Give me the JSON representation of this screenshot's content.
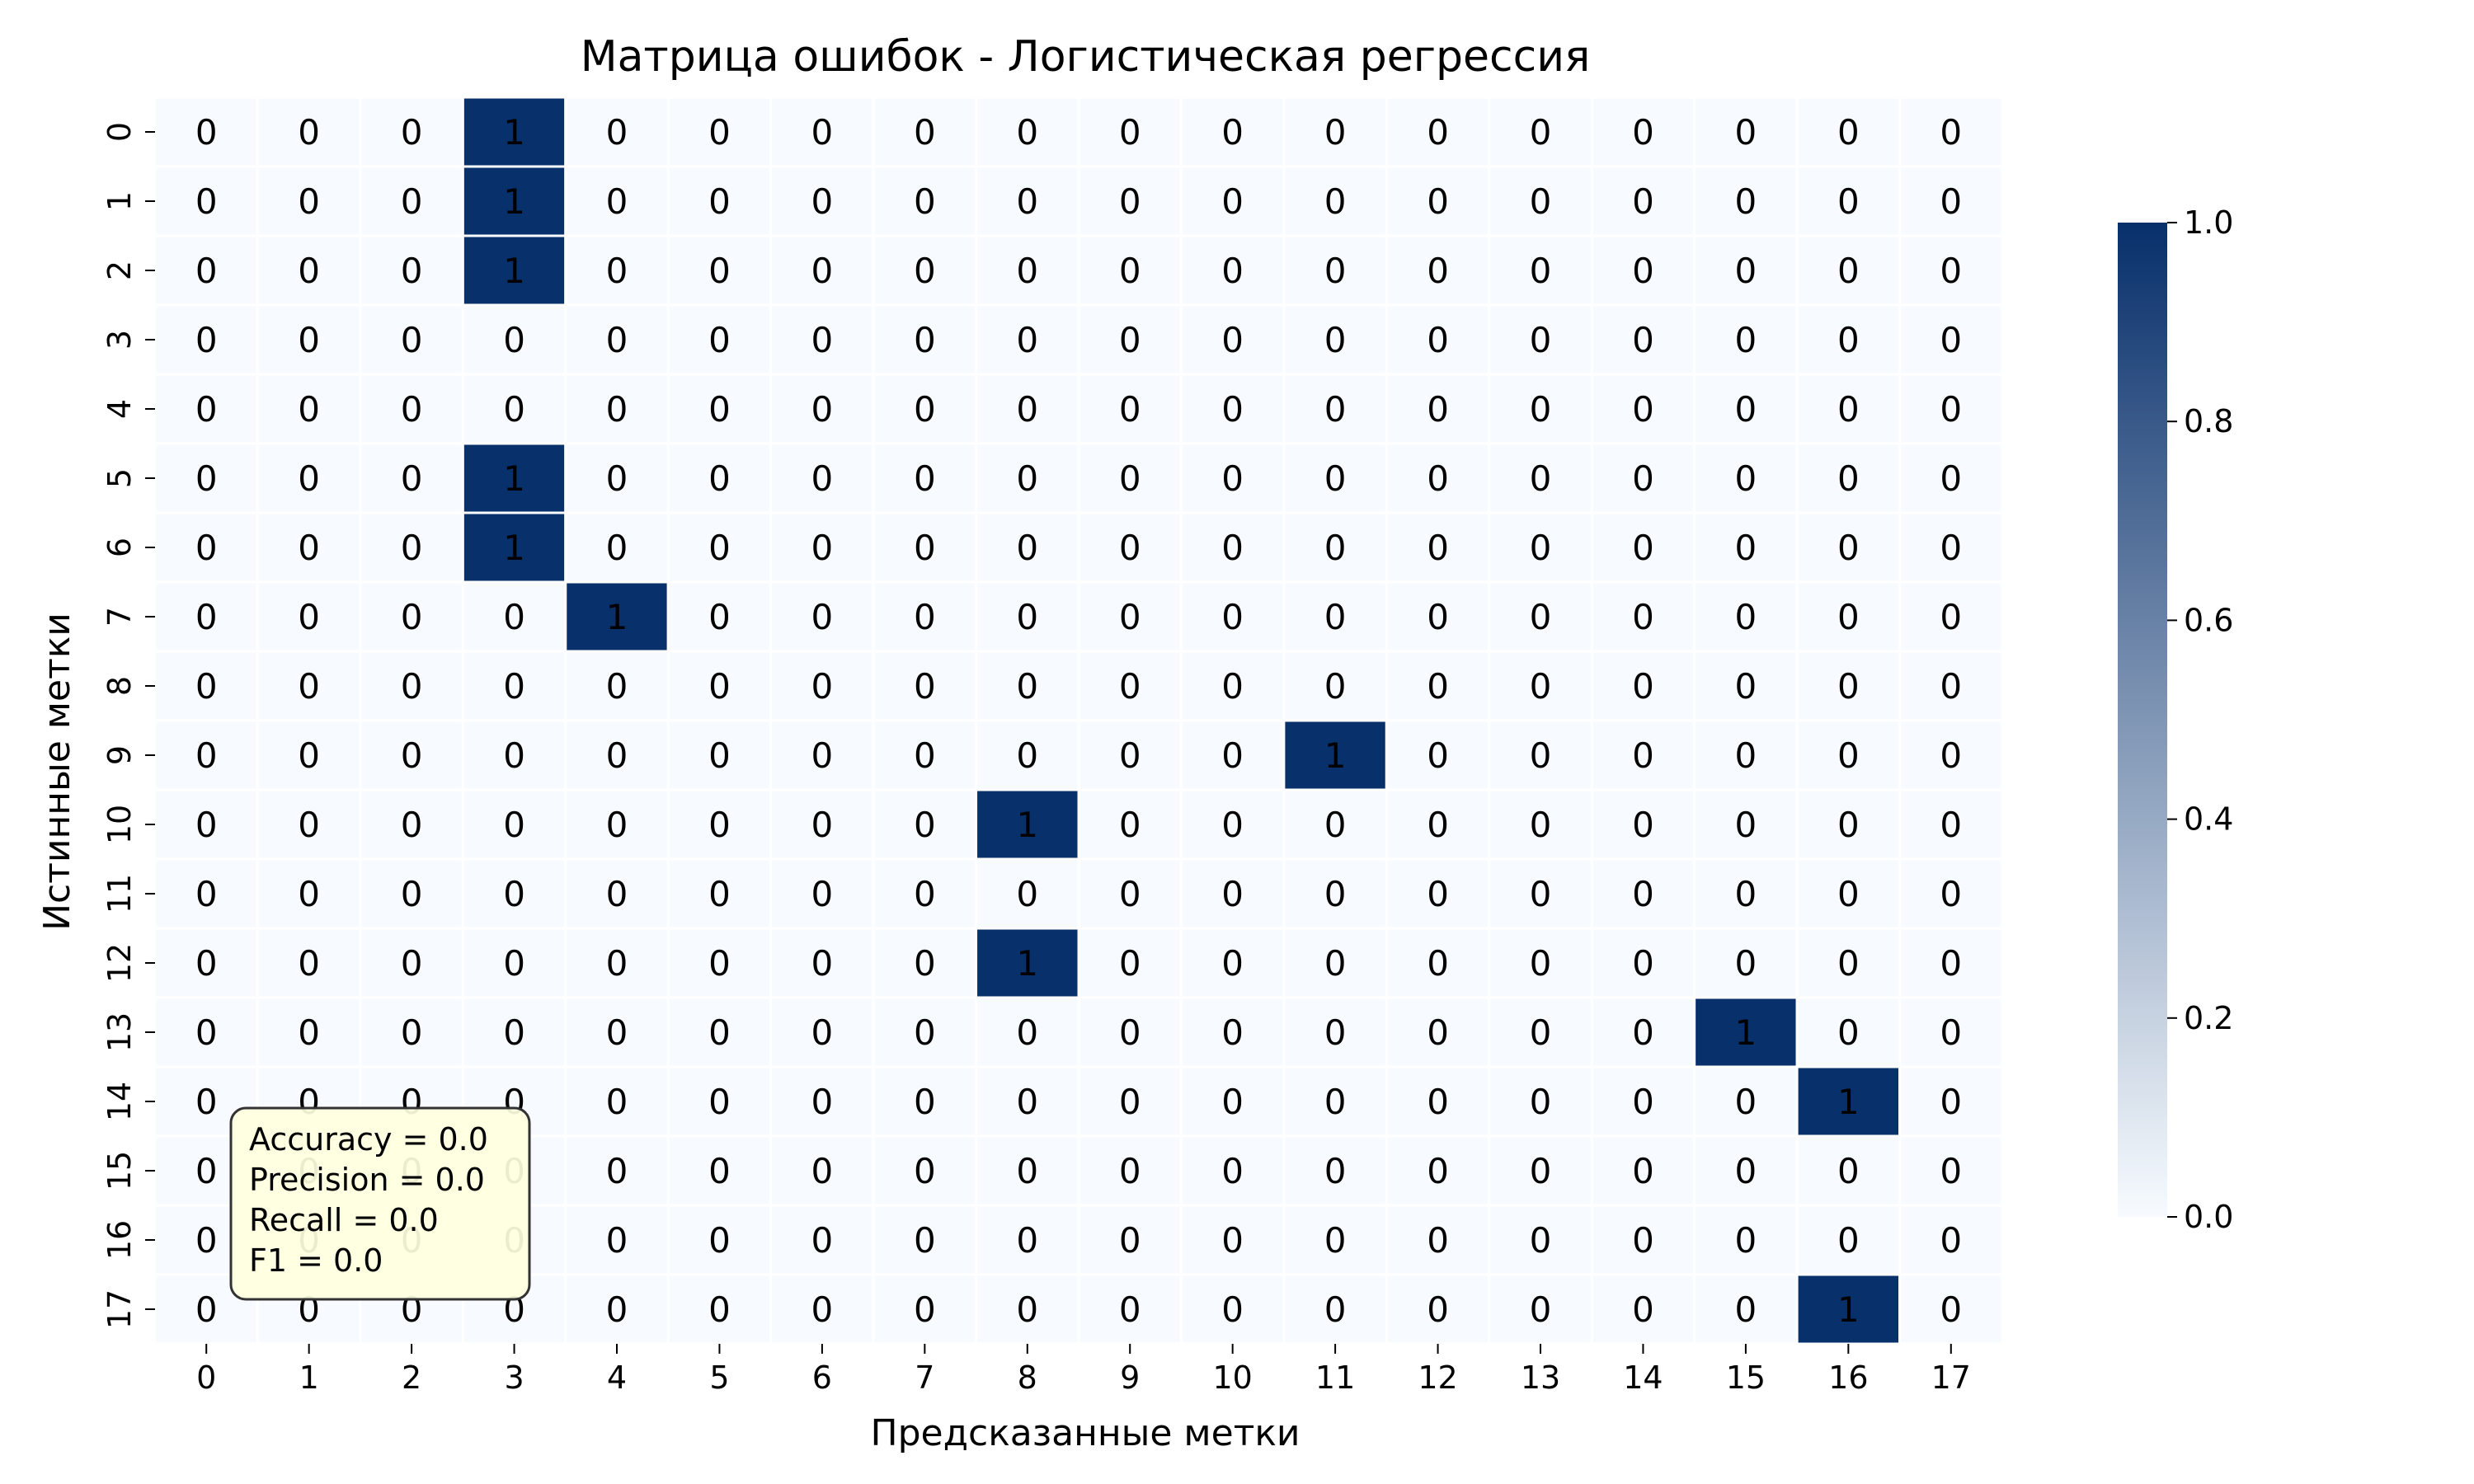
{
  "chart_data": {
    "type": "heatmap",
    "title": "Матрица ошибок - Логистическая регрессия",
    "xlabel": "Предсказанные метки",
    "ylabel": "Истинные метки",
    "x_tick_labels": [
      "0",
      "1",
      "2",
      "3",
      "4",
      "5",
      "6",
      "7",
      "8",
      "9",
      "10",
      "11",
      "12",
      "13",
      "14",
      "15",
      "16",
      "17"
    ],
    "y_tick_labels": [
      "0",
      "1",
      "2",
      "3",
      "4",
      "5",
      "6",
      "7",
      "8",
      "9",
      "10",
      "11",
      "12",
      "13",
      "14",
      "15",
      "16",
      "17"
    ],
    "matrix": [
      [
        0,
        0,
        0,
        1,
        0,
        0,
        0,
        0,
        0,
        0,
        0,
        0,
        0,
        0,
        0,
        0,
        0,
        0
      ],
      [
        0,
        0,
        0,
        1,
        0,
        0,
        0,
        0,
        0,
        0,
        0,
        0,
        0,
        0,
        0,
        0,
        0,
        0
      ],
      [
        0,
        0,
        0,
        1,
        0,
        0,
        0,
        0,
        0,
        0,
        0,
        0,
        0,
        0,
        0,
        0,
        0,
        0
      ],
      [
        0,
        0,
        0,
        0,
        0,
        0,
        0,
        0,
        0,
        0,
        0,
        0,
        0,
        0,
        0,
        0,
        0,
        0
      ],
      [
        0,
        0,
        0,
        0,
        0,
        0,
        0,
        0,
        0,
        0,
        0,
        0,
        0,
        0,
        0,
        0,
        0,
        0
      ],
      [
        0,
        0,
        0,
        1,
        0,
        0,
        0,
        0,
        0,
        0,
        0,
        0,
        0,
        0,
        0,
        0,
        0,
        0
      ],
      [
        0,
        0,
        0,
        1,
        0,
        0,
        0,
        0,
        0,
        0,
        0,
        0,
        0,
        0,
        0,
        0,
        0,
        0
      ],
      [
        0,
        0,
        0,
        0,
        1,
        0,
        0,
        0,
        0,
        0,
        0,
        0,
        0,
        0,
        0,
        0,
        0,
        0
      ],
      [
        0,
        0,
        0,
        0,
        0,
        0,
        0,
        0,
        0,
        0,
        0,
        0,
        0,
        0,
        0,
        0,
        0,
        0
      ],
      [
        0,
        0,
        0,
        0,
        0,
        0,
        0,
        0,
        0,
        0,
        0,
        1,
        0,
        0,
        0,
        0,
        0,
        0
      ],
      [
        0,
        0,
        0,
        0,
        0,
        0,
        0,
        0,
        1,
        0,
        0,
        0,
        0,
        0,
        0,
        0,
        0,
        0
      ],
      [
        0,
        0,
        0,
        0,
        0,
        0,
        0,
        0,
        0,
        0,
        0,
        0,
        0,
        0,
        0,
        0,
        0,
        0
      ],
      [
        0,
        0,
        0,
        0,
        0,
        0,
        0,
        0,
        1,
        0,
        0,
        0,
        0,
        0,
        0,
        0,
        0,
        0
      ],
      [
        0,
        0,
        0,
        0,
        0,
        0,
        0,
        0,
        0,
        0,
        0,
        0,
        0,
        0,
        0,
        1,
        0,
        0
      ],
      [
        0,
        0,
        0,
        0,
        0,
        0,
        0,
        0,
        0,
        0,
        0,
        0,
        0,
        0,
        0,
        0,
        1,
        0
      ],
      [
        0,
        0,
        0,
        0,
        0,
        0,
        0,
        0,
        0,
        0,
        0,
        0,
        0,
        0,
        0,
        0,
        0,
        0
      ],
      [
        0,
        0,
        0,
        0,
        0,
        0,
        0,
        0,
        0,
        0,
        0,
        0,
        0,
        0,
        0,
        0,
        0,
        0
      ],
      [
        0,
        0,
        0,
        0,
        0,
        0,
        0,
        0,
        0,
        0,
        0,
        0,
        0,
        0,
        0,
        0,
        1,
        0
      ]
    ],
    "value_range": [
      0,
      1
    ],
    "colormap": {
      "low": "#f7fbff",
      "high": "#08306b"
    },
    "colorbar_ticks": [
      "0.0",
      "0.2",
      "0.4",
      "0.6",
      "0.8",
      "1.0"
    ],
    "annotation_text_color_dark": "#262626",
    "annotation_text_color_light": "#ffffff",
    "metrics_box": {
      "lines": [
        "Accuracy = 0.0",
        "Precision = 0.0",
        "Recall = 0.0",
        "F1 = 0.0"
      ],
      "background": "#ffffe0",
      "border": "#333333"
    }
  }
}
